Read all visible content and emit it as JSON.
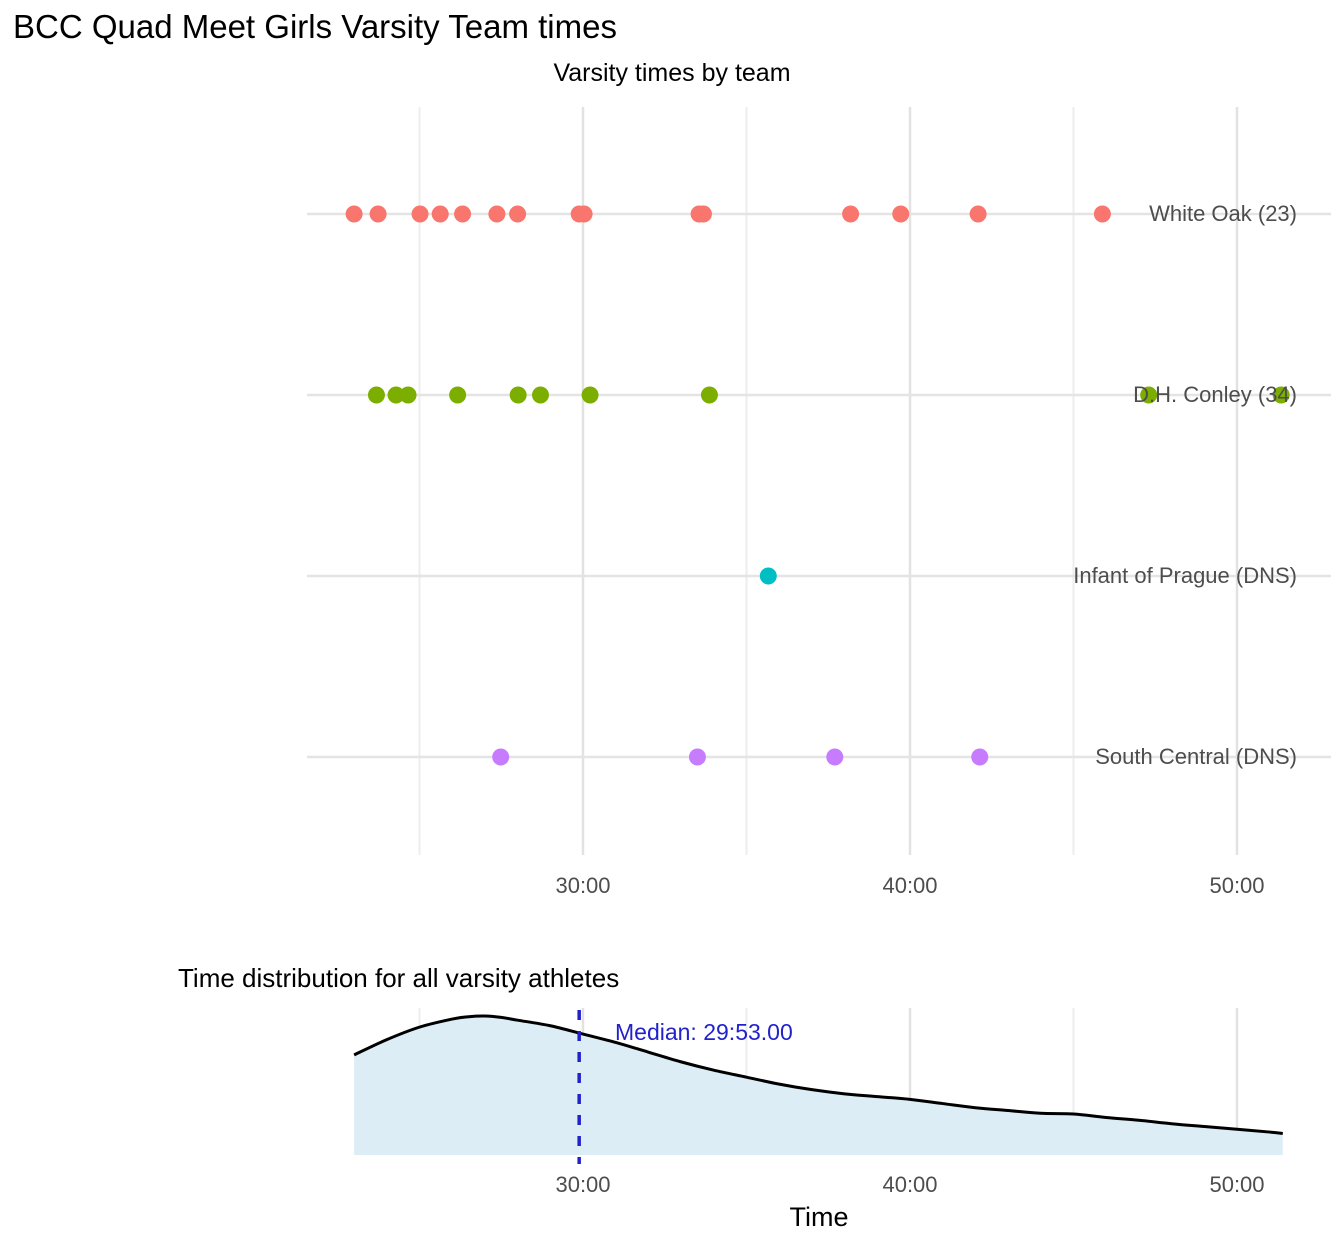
{
  "figure": {
    "title": "BCC Quad Meet Girls Varsity Team times"
  },
  "chart_data": [
    {
      "type": "scatter",
      "title": "Varsity times by team",
      "xlabel": "",
      "ylabel": "",
      "x_tick_labels": [
        "30:00",
        "40:00",
        "50:00"
      ],
      "x_tick_minutes": [
        30,
        40,
        50
      ],
      "x_minor_minutes": [
        25,
        35,
        45
      ],
      "grid": "on",
      "series": [
        {
          "name": "White Oak (23)",
          "color": "#F8766D",
          "times": [
            "23:00",
            "23:44",
            "25:01",
            "25:38",
            "26:19",
            "27:22",
            "28:00",
            "29:53",
            "30:02",
            "33:33",
            "33:41",
            "38:11",
            "39:43",
            "42:05",
            "45:53"
          ]
        },
        {
          "name": "D.H. Conley (34)",
          "color": "#7CAE00",
          "times": [
            "23:41",
            "24:17",
            "24:39",
            "26:10",
            "28:01",
            "28:42",
            "30:13",
            "33:52",
            "47:18",
            "51:21"
          ]
        },
        {
          "name": "Infant of Prague (DNS)",
          "color": "#00BFC4",
          "times": [
            "35:40"
          ]
        },
        {
          "name": "South Central (DNS)",
          "color": "#C77CFF",
          "times": [
            "27:29",
            "33:30",
            "37:42",
            "42:08"
          ]
        }
      ]
    },
    {
      "type": "area",
      "title": "Time distribution for all varsity athletes",
      "xlabel": "Time",
      "x_tick_labels": [
        "30:00",
        "40:00",
        "50:00"
      ],
      "x_tick_minutes": [
        30,
        40,
        50
      ],
      "x_minor_minutes": [
        25,
        35,
        45
      ],
      "median_label": "Median: 29:53.00",
      "median_minutes": 29.883,
      "median_color": "#2222CC",
      "fill_color": "#DCEDF6",
      "line_color": "#000000",
      "density_curve_t_h": [
        [
          23,
          0.72
        ],
        [
          24,
          0.83
        ],
        [
          25,
          0.92
        ],
        [
          26,
          0.978
        ],
        [
          26.5,
          0.995
        ],
        [
          27,
          1.0
        ],
        [
          27.5,
          0.99
        ],
        [
          28,
          0.97
        ],
        [
          29,
          0.93
        ],
        [
          30,
          0.87
        ],
        [
          31,
          0.81
        ],
        [
          32,
          0.74
        ],
        [
          33,
          0.67
        ],
        [
          34,
          0.61
        ],
        [
          35,
          0.56
        ],
        [
          36,
          0.51
        ],
        [
          37,
          0.47
        ],
        [
          38,
          0.44
        ],
        [
          39,
          0.42
        ],
        [
          40,
          0.4
        ],
        [
          41,
          0.37
        ],
        [
          42,
          0.34
        ],
        [
          43,
          0.32
        ],
        [
          44,
          0.3
        ],
        [
          45,
          0.295
        ],
        [
          46,
          0.27
        ],
        [
          47,
          0.25
        ],
        [
          48,
          0.225
        ],
        [
          49,
          0.205
        ],
        [
          50,
          0.185
        ],
        [
          51,
          0.165
        ],
        [
          51.4,
          0.155
        ]
      ]
    }
  ]
}
